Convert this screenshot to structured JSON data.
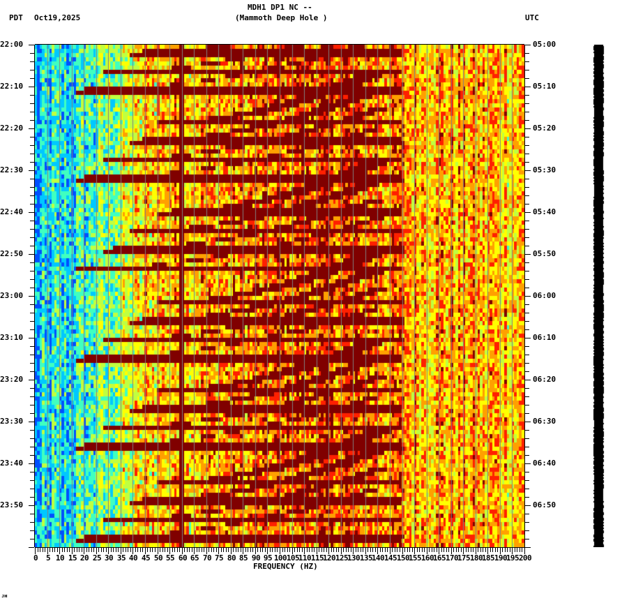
{
  "header": {
    "title": "MDH1 DP1 NC --",
    "subtitle": "(Mammoth Deep Hole )",
    "left_tz": "PDT",
    "date": "Oct19,2025",
    "right_tz": "UTC"
  },
  "footer_mark": "ᴊʜ",
  "chart_data": {
    "type": "heatmap",
    "title": "MDH1 DP1 NC -- (Mammoth Deep Hole )",
    "subtitle": "Spectrogram, Oct19,2025",
    "xlabel": "FREQUENCY (HZ)",
    "ylabel_left": "PDT",
    "ylabel_right": "UTC",
    "xlim": [
      0,
      200
    ],
    "x_ticks": [
      "0",
      "5",
      "10",
      "15",
      "20",
      "25",
      "30",
      "35",
      "40",
      "45",
      "50",
      "55",
      "60",
      "65",
      "70",
      "75",
      "80",
      "85",
      "90",
      "95",
      "100",
      "105",
      "110",
      "115",
      "120",
      "125",
      "130",
      "135",
      "140",
      "145",
      "150",
      "155",
      "160",
      "165",
      "170",
      "175",
      "180",
      "185",
      "190",
      "195",
      "200"
    ],
    "y_ticks_left": [
      "22:00",
      "22:10",
      "22:20",
      "22:30",
      "22:40",
      "22:50",
      "23:00",
      "23:10",
      "23:20",
      "23:30",
      "23:40",
      "23:50"
    ],
    "y_ticks_right": [
      "05:00",
      "05:10",
      "05:20",
      "05:30",
      "05:40",
      "05:50",
      "06:00",
      "06:10",
      "06:20",
      "06:30",
      "06:40",
      "06:50"
    ],
    "time_range_minutes": 120,
    "vertical_grid_hz_step": 5,
    "colormap": [
      "#0050ff",
      "#00c8ff",
      "#40ffc0",
      "#c0ff40",
      "#ffff00",
      "#ffa000",
      "#ff2000",
      "#800000"
    ],
    "features": {
      "persistent_line_hz": 60,
      "low_freq_band": "0-25 Hz low energy (blue/cyan)",
      "high_freq_band": "130-200 Hz moderate energy (yellow/orange)",
      "chirp_sweeps": "repeating curved high-energy sweeps rising from ~20 Hz to ~140 Hz, repeating roughly every 20-30 minutes, with start times near 22:10, 22:31, 22:53, 23:15, 23:36, 23:57"
    }
  }
}
